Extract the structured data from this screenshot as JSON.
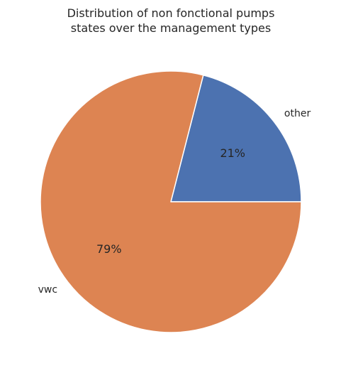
{
  "chart_data": {
    "type": "pie",
    "title_lines": [
      "Distribution of non fonctional pumps",
      "states over the management types"
    ],
    "categories": [
      "other",
      "vwc"
    ],
    "values": [
      21,
      79
    ],
    "percent_labels": [
      "21%",
      "79%"
    ],
    "colors": [
      "#4c72b0",
      "#dd8452"
    ],
    "start_angle_deg": 0,
    "direction": "counterclockwise",
    "legend": "none"
  }
}
